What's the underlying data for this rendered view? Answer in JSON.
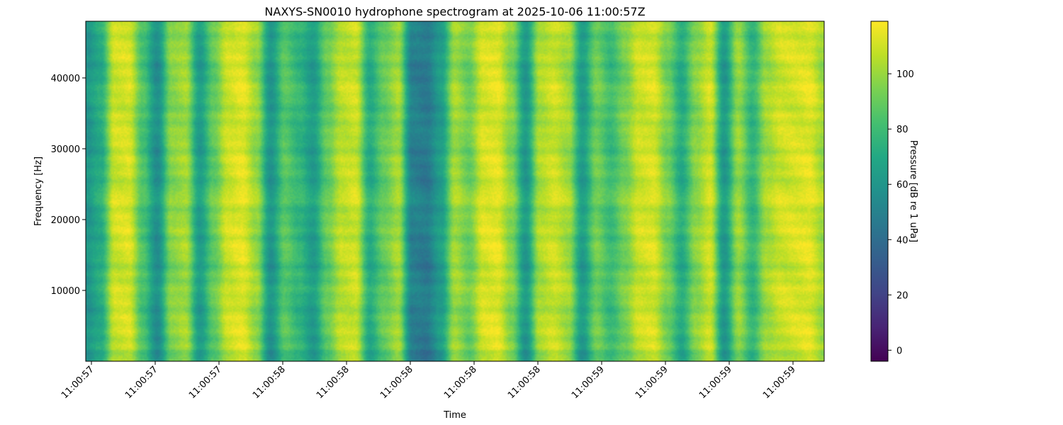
{
  "chart_data": {
    "type": "heatmap",
    "title": "NAXYS-SN0010 hydrophone spectrogram at 2025-10-06 11:00:57Z",
    "xlabel": "Time",
    "ylabel": "Frequency [Hz]",
    "colorbar_label": "Pressure [dB re 1 uPa]",
    "colormap": "viridis",
    "x_tick_labels": [
      "11:00:57",
      "11:00:57",
      "11:00:57",
      "11:00:58",
      "11:00:58",
      "11:00:58",
      "11:00:58",
      "11:00:58",
      "11:00:59",
      "11:00:59",
      "11:00:59",
      "11:00:59"
    ],
    "y_ticks": [
      10000,
      20000,
      30000,
      40000
    ],
    "y_range": [
      0,
      48000
    ],
    "colorbar_ticks": [
      0,
      20,
      40,
      60,
      80,
      100
    ],
    "color_range": [
      -4,
      119
    ],
    "time_profile_db": [
      58,
      70,
      108,
      110,
      82,
      55,
      95,
      100,
      62,
      88,
      108,
      112,
      98,
      58,
      85,
      75,
      62,
      88,
      105,
      108,
      70,
      88,
      100,
      48,
      45,
      62,
      100,
      90,
      110,
      112,
      95,
      60,
      102,
      108,
      100,
      62,
      90,
      78,
      92,
      108,
      110,
      92,
      70,
      95,
      108,
      60,
      98,
      75,
      100,
      108,
      110,
      112,
      100
    ],
    "frequency_bands_db": [
      3,
      -2,
      4,
      -3,
      5,
      -1,
      4,
      -4,
      3,
      0,
      6,
      -2,
      4,
      -5,
      3,
      1,
      5,
      -3,
      6,
      0,
      4,
      -2,
      7,
      5,
      2,
      -3,
      4,
      -1,
      5,
      -4,
      3,
      0,
      4,
      -2,
      5,
      -3,
      4,
      1,
      6,
      -2,
      3,
      -4,
      5,
      0,
      4,
      -3,
      5,
      2
    ]
  }
}
